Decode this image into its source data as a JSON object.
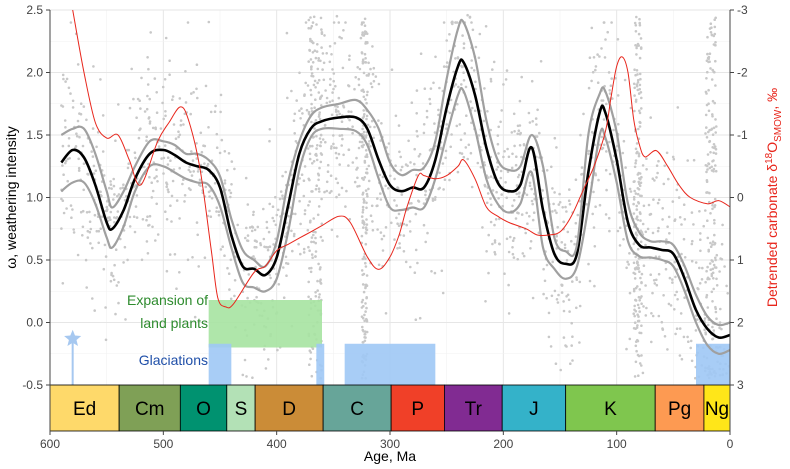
{
  "chart_data": {
    "type": "line",
    "x_axis": {
      "label": "Age, Ma",
      "range": [
        600,
        0
      ],
      "ticks": [
        600,
        500,
        400,
        300,
        200,
        100,
        0
      ],
      "tick_labels": [
        "600",
        "500",
        "400",
        "300",
        "200",
        "100",
        "0"
      ],
      "reversed": true
    },
    "y_axis_left": {
      "label": "ω, weathering intensity",
      "range": [
        -0.5,
        2.5
      ],
      "ticks": [
        -0.5,
        0.0,
        0.5,
        1.0,
        1.5,
        2.0,
        2.5
      ],
      "tick_labels": [
        "-0.5",
        "0.0",
        "0.5",
        "1.0",
        "1.5",
        "2.0",
        "2.5"
      ]
    },
    "y_axis_right": {
      "label_prefix": "Detrended carbonate δ",
      "label_sup": "18",
      "label_mid": "O",
      "label_sub": "SMOW",
      "label_suffix": ", ‰",
      "range_top_bottom": [
        -3,
        3
      ],
      "ticks": [
        -3,
        -2,
        -1,
        0,
        1,
        2,
        3
      ],
      "tick_labels": [
        "-3",
        "-2",
        "-1",
        "0",
        "1",
        "2",
        "3"
      ],
      "reversed": true,
      "color": "#e8261c"
    },
    "grid": true,
    "series": [
      {
        "style": "mean",
        "axis": "left",
        "color": "#000000",
        "points": [
          [
            590,
            1.28
          ],
          [
            580,
            1.38
          ],
          [
            570,
            1.32
          ],
          [
            560,
            1.1
          ],
          [
            550,
            0.8
          ],
          [
            545,
            0.75
          ],
          [
            535,
            0.9
          ],
          [
            525,
            1.15
          ],
          [
            512,
            1.35
          ],
          [
            500,
            1.38
          ],
          [
            490,
            1.34
          ],
          [
            480,
            1.28
          ],
          [
            470,
            1.25
          ],
          [
            460,
            1.22
          ],
          [
            450,
            1.08
          ],
          [
            440,
            0.7
          ],
          [
            430,
            0.45
          ],
          [
            420,
            0.43
          ],
          [
            410,
            0.38
          ],
          [
            400,
            0.52
          ],
          [
            390,
            0.93
          ],
          [
            380,
            1.35
          ],
          [
            370,
            1.55
          ],
          [
            360,
            1.61
          ],
          [
            345,
            1.64
          ],
          [
            330,
            1.64
          ],
          [
            320,
            1.55
          ],
          [
            310,
            1.3
          ],
          [
            300,
            1.1
          ],
          [
            290,
            1.05
          ],
          [
            280,
            1.08
          ],
          [
            270,
            1.08
          ],
          [
            260,
            1.3
          ],
          [
            250,
            1.72
          ],
          [
            240,
            2.05
          ],
          [
            235,
            2.08
          ],
          [
            225,
            1.82
          ],
          [
            215,
            1.4
          ],
          [
            205,
            1.12
          ],
          [
            195,
            1.05
          ],
          [
            185,
            1.1
          ],
          [
            175,
            1.4
          ],
          [
            165,
            0.9
          ],
          [
            155,
            0.55
          ],
          [
            145,
            0.47
          ],
          [
            135,
            0.55
          ],
          [
            125,
            1.2
          ],
          [
            115,
            1.68
          ],
          [
            110,
            1.68
          ],
          [
            100,
            1.3
          ],
          [
            90,
            0.8
          ],
          [
            80,
            0.62
          ],
          [
            70,
            0.6
          ],
          [
            60,
            0.58
          ],
          [
            50,
            0.55
          ],
          [
            40,
            0.35
          ],
          [
            30,
            0.1
          ],
          [
            20,
            -0.05
          ],
          [
            10,
            -0.12
          ],
          [
            0,
            -0.1
          ]
        ]
      },
      {
        "style": "upper-bound",
        "axis": "left",
        "color": "#a0a0a0",
        "points": [
          [
            590,
            1.5
          ],
          [
            580,
            1.55
          ],
          [
            570,
            1.55
          ],
          [
            560,
            1.35
          ],
          [
            550,
            1.05
          ],
          [
            545,
            0.92
          ],
          [
            535,
            1.05
          ],
          [
            525,
            1.25
          ],
          [
            512,
            1.45
          ],
          [
            500,
            1.45
          ],
          [
            490,
            1.42
          ],
          [
            480,
            1.35
          ],
          [
            470,
            1.35
          ],
          [
            460,
            1.3
          ],
          [
            450,
            1.17
          ],
          [
            440,
            0.83
          ],
          [
            430,
            0.58
          ],
          [
            420,
            0.5
          ],
          [
            410,
            0.45
          ],
          [
            400,
            0.65
          ],
          [
            390,
            1.12
          ],
          [
            380,
            1.45
          ],
          [
            370,
            1.65
          ],
          [
            360,
            1.72
          ],
          [
            345,
            1.75
          ],
          [
            330,
            1.78
          ],
          [
            320,
            1.7
          ],
          [
            310,
            1.55
          ],
          [
            300,
            1.28
          ],
          [
            290,
            1.18
          ],
          [
            280,
            1.22
          ],
          [
            270,
            1.24
          ],
          [
            260,
            1.45
          ],
          [
            250,
            1.95
          ],
          [
            240,
            2.35
          ],
          [
            235,
            2.4
          ],
          [
            225,
            2.12
          ],
          [
            215,
            1.62
          ],
          [
            205,
            1.3
          ],
          [
            195,
            1.22
          ],
          [
            185,
            1.25
          ],
          [
            175,
            1.5
          ],
          [
            165,
            1.25
          ],
          [
            155,
            0.68
          ],
          [
            145,
            0.57
          ],
          [
            135,
            0.62
          ],
          [
            125,
            1.5
          ],
          [
            115,
            1.83
          ],
          [
            110,
            1.85
          ],
          [
            100,
            1.52
          ],
          [
            90,
            0.95
          ],
          [
            80,
            0.72
          ],
          [
            70,
            0.65
          ],
          [
            60,
            0.65
          ],
          [
            50,
            0.62
          ],
          [
            40,
            0.45
          ],
          [
            30,
            0.22
          ],
          [
            20,
            0.05
          ],
          [
            10,
            -0.02
          ],
          [
            0,
            0.0
          ]
        ]
      },
      {
        "style": "lower-bound",
        "axis": "left",
        "color": "#a0a0a0",
        "points": [
          [
            590,
            1.05
          ],
          [
            580,
            1.12
          ],
          [
            570,
            1.12
          ],
          [
            560,
            0.95
          ],
          [
            550,
            0.68
          ],
          [
            545,
            0.6
          ],
          [
            535,
            0.77
          ],
          [
            525,
            1.05
          ],
          [
            512,
            1.25
          ],
          [
            500,
            1.25
          ],
          [
            490,
            1.2
          ],
          [
            480,
            1.15
          ],
          [
            470,
            1.12
          ],
          [
            460,
            1.1
          ],
          [
            450,
            0.93
          ],
          [
            440,
            0.6
          ],
          [
            430,
            0.32
          ],
          [
            420,
            0.28
          ],
          [
            410,
            0.25
          ],
          [
            400,
            0.35
          ],
          [
            390,
            0.72
          ],
          [
            380,
            1.22
          ],
          [
            370,
            1.48
          ],
          [
            360,
            1.55
          ],
          [
            345,
            1.55
          ],
          [
            330,
            1.53
          ],
          [
            320,
            1.42
          ],
          [
            310,
            1.15
          ],
          [
            300,
            0.92
          ],
          [
            290,
            0.9
          ],
          [
            280,
            0.92
          ],
          [
            270,
            0.92
          ],
          [
            260,
            1.15
          ],
          [
            250,
            1.5
          ],
          [
            240,
            1.82
          ],
          [
            235,
            1.85
          ],
          [
            225,
            1.55
          ],
          [
            215,
            1.15
          ],
          [
            205,
            0.95
          ],
          [
            195,
            0.88
          ],
          [
            185,
            0.95
          ],
          [
            175,
            1.2
          ],
          [
            165,
            0.6
          ],
          [
            155,
            0.43
          ],
          [
            145,
            0.35
          ],
          [
            135,
            0.45
          ],
          [
            125,
            0.92
          ],
          [
            115,
            1.5
          ],
          [
            110,
            1.48
          ],
          [
            100,
            1.12
          ],
          [
            90,
            0.65
          ],
          [
            80,
            0.53
          ],
          [
            70,
            0.52
          ],
          [
            60,
            0.5
          ],
          [
            50,
            0.45
          ],
          [
            40,
            0.25
          ],
          [
            30,
            0.0
          ],
          [
            20,
            -0.18
          ],
          [
            10,
            -0.25
          ],
          [
            0,
            -0.22
          ]
        ]
      },
      {
        "style": "oxygen-isotope",
        "axis": "right",
        "color": "#e8261c",
        "points": [
          [
            580,
            -3.0
          ],
          [
            570,
            -2.0
          ],
          [
            560,
            -1.2
          ],
          [
            550,
            -0.95
          ],
          [
            540,
            -1.0
          ],
          [
            530,
            -0.6
          ],
          [
            520,
            -0.2
          ],
          [
            505,
            -0.9
          ],
          [
            495,
            -1.2
          ],
          [
            485,
            -1.45
          ],
          [
            478,
            -1.25
          ],
          [
            468,
            -0.5
          ],
          [
            458,
            0.8
          ],
          [
            452,
            1.6
          ],
          [
            445,
            1.75
          ],
          [
            438,
            1.7
          ],
          [
            420,
            1.2
          ],
          [
            410,
            1.1
          ],
          [
            400,
            0.85
          ],
          [
            390,
            0.75
          ],
          [
            380,
            0.65
          ],
          [
            370,
            0.55
          ],
          [
            360,
            0.45
          ],
          [
            345,
            0.3
          ],
          [
            335,
            0.4
          ],
          [
            320,
            0.95
          ],
          [
            310,
            1.15
          ],
          [
            300,
            0.95
          ],
          [
            292,
            0.6
          ],
          [
            285,
            0.15
          ],
          [
            275,
            -0.35
          ],
          [
            270,
            -0.35
          ],
          [
            260,
            -0.3
          ],
          [
            250,
            -0.35
          ],
          [
            240,
            -0.5
          ],
          [
            235,
            -0.6
          ],
          [
            225,
            -0.3
          ],
          [
            215,
            0.15
          ],
          [
            205,
            0.3
          ],
          [
            195,
            0.4
          ],
          [
            180,
            0.5
          ],
          [
            170,
            0.6
          ],
          [
            160,
            0.6
          ],
          [
            150,
            0.55
          ],
          [
            140,
            0.3
          ],
          [
            130,
            -0.1
          ],
          [
            120,
            -0.5
          ],
          [
            110,
            -1.05
          ],
          [
            105,
            -1.6
          ],
          [
            100,
            -2.1
          ],
          [
            95,
            -2.25
          ],
          [
            90,
            -2.0
          ],
          [
            85,
            -1.25
          ],
          [
            80,
            -0.85
          ],
          [
            75,
            -0.65
          ],
          [
            65,
            -0.75
          ],
          [
            55,
            -0.5
          ],
          [
            45,
            -0.2
          ],
          [
            35,
            0.0
          ],
          [
            20,
            0.1
          ],
          [
            10,
            0.05
          ],
          [
            0,
            0.15
          ]
        ]
      }
    ],
    "scatter_cloud": {
      "color": "#c8c8c8",
      "note_free": true,
      "dense_bands_ma": [
        [
          372,
          360
        ],
        [
          325,
          320
        ],
        [
          85,
          78
        ],
        [
          22,
          12
        ]
      ]
    },
    "shaded_regions": [
      {
        "label": "Expansion of\nland plants",
        "label_lines": [
          "Expansion of",
          "land plants"
        ],
        "label_color": "#2e8b2e",
        "color": "#a6e3a1",
        "x_start": 460,
        "x_end": 360,
        "y_from": -0.2,
        "y_to": 0.18
      },
      {
        "label": "Glaciations",
        "label_lines": [
          "Glaciations"
        ],
        "label_color": "#1f4fa8",
        "color": "#9ec8f5",
        "bands": [
          [
            460,
            440
          ],
          [
            365,
            358
          ],
          [
            340,
            260
          ],
          [
            30,
            0
          ]
        ],
        "y_from": -0.5,
        "y_to": -0.17
      }
    ],
    "marker": {
      "shape": "star",
      "color": "#a6c8f0",
      "age": 580,
      "y": -0.13
    },
    "periods": [
      {
        "label": "Ed",
        "start": 635,
        "end": 539,
        "color": "#fed96a"
      },
      {
        "label": "Cm",
        "start": 539,
        "end": 485,
        "color": "#7fa056"
      },
      {
        "label": "O",
        "start": 485,
        "end": 444,
        "color": "#009270"
      },
      {
        "label": "S",
        "start": 444,
        "end": 419,
        "color": "#b3e1b6"
      },
      {
        "label": "D",
        "start": 419,
        "end": 359,
        "color": "#cb8c37"
      },
      {
        "label": "C",
        "start": 359,
        "end": 299,
        "color": "#67a599"
      },
      {
        "label": "P",
        "start": 299,
        "end": 252,
        "color": "#f04028"
      },
      {
        "label": "Tr",
        "start": 252,
        "end": 201,
        "color": "#812b92"
      },
      {
        "label": "J",
        "start": 201,
        "end": 145,
        "color": "#34b2c9"
      },
      {
        "label": "K",
        "start": 145,
        "end": 66,
        "color": "#7fc64e"
      },
      {
        "label": "Pg",
        "start": 66,
        "end": 23,
        "color": "#fd9a52"
      },
      {
        "label": "Ng",
        "start": 23,
        "end": 0,
        "color": "#ffe619"
      }
    ]
  }
}
